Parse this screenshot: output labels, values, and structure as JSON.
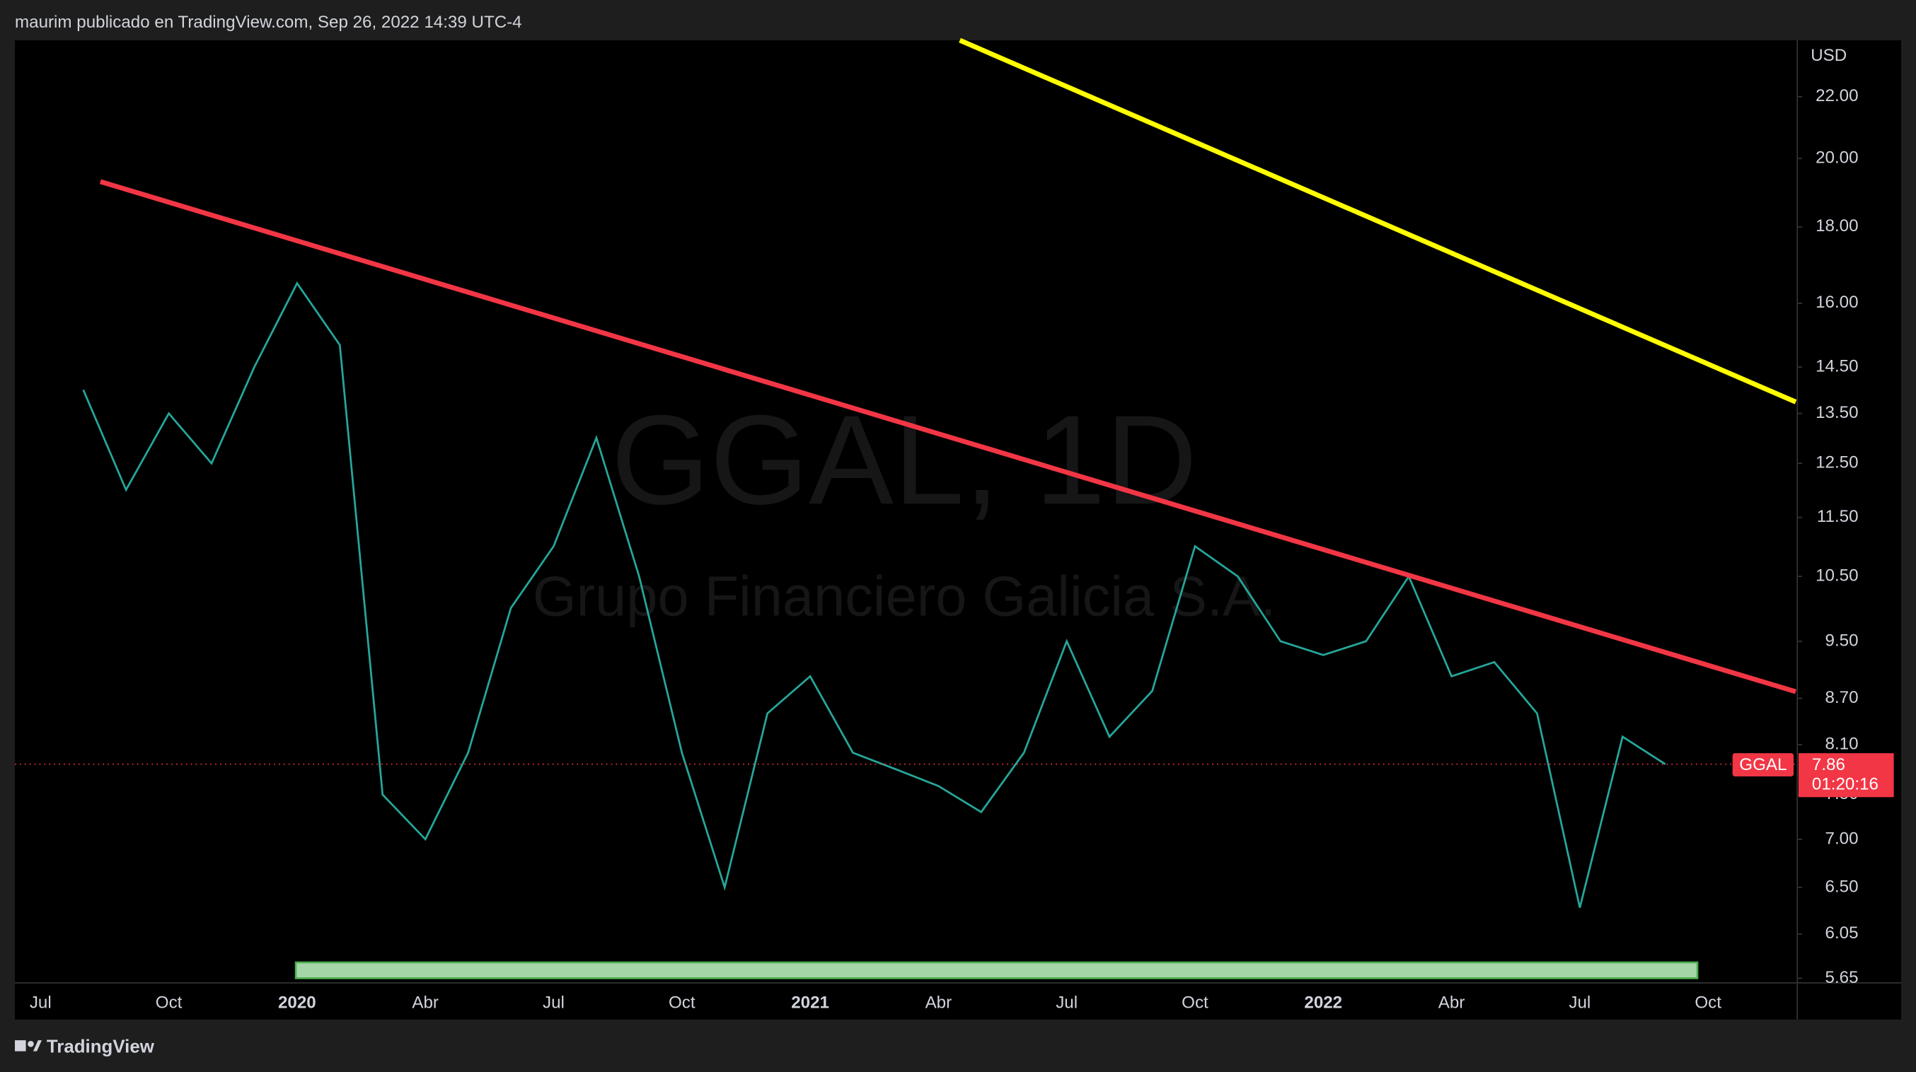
{
  "header": "maurim publicado en TradingView.com, Sep 26, 2022 14:39 UTC-4",
  "footer": "TradingView",
  "chart_data": {
    "type": "line",
    "watermark": "GGAL, 1D",
    "watermark_subtitle": "Grupo Financiero Galicia S.A.",
    "currency": "USD",
    "log_scale": true,
    "grid": false,
    "categories": [
      "Jul",
      null,
      null,
      "Oct",
      null,
      null,
      "2020",
      null,
      null,
      "Abr",
      null,
      null,
      "Jul",
      null,
      null,
      "Oct",
      null,
      null,
      "2021",
      null,
      null,
      "Abr",
      null,
      null,
      "Jul",
      null,
      null,
      "Oct",
      null,
      null,
      "2022",
      null,
      null,
      "Abr",
      null,
      null,
      "Jul",
      null,
      null,
      "Oct"
    ],
    "series": [
      {
        "name": "GGAL",
        "color": "#26a69a",
        "values": [
          null,
          14,
          12,
          13.5,
          12.5,
          14.5,
          16.5,
          15,
          7.5,
          7,
          8,
          10,
          11,
          13,
          10.5,
          8,
          6.5,
          8.5,
          9,
          8,
          7.8,
          7.6,
          7.3,
          8,
          9.5,
          8.2,
          8.8,
          11,
          10.5,
          9.5,
          9.3,
          9.5,
          10.5,
          9,
          9.2,
          8.5,
          6.3,
          8.2,
          7.86,
          null
        ]
      }
    ],
    "ylim": [
      5.61,
      24.0
    ],
    "yticks": [
      {
        "value": 5.65,
        "label": "5.65"
      },
      {
        "value": 6.05,
        "label": "6.05"
      },
      {
        "value": 6.5,
        "label": "6.50"
      },
      {
        "value": 7,
        "label": "7.00"
      },
      {
        "value": 7.5,
        "label": "7.50"
      },
      {
        "value": 8.1,
        "label": "8.10"
      },
      {
        "value": 8.7,
        "label": "8.70"
      },
      {
        "value": 9.5,
        "label": "9.50"
      },
      {
        "value": 10.5,
        "label": "10.50"
      },
      {
        "value": 11.5,
        "label": "11.50"
      },
      {
        "value": 12.5,
        "label": "12.50"
      },
      {
        "value": 13.5,
        "label": "13.50"
      },
      {
        "value": 14.5,
        "label": "14.50"
      },
      {
        "value": 16,
        "label": "16.00"
      },
      {
        "value": 18,
        "label": "18.00"
      },
      {
        "value": 20,
        "label": "20.00"
      },
      {
        "value": 22,
        "label": "22.00"
      }
    ],
    "trendlines": [
      {
        "color": "#f23645",
        "points": [
          [
            1.4,
            19.3
          ],
          [
            41.05,
            8.79
          ]
        ]
      },
      {
        "color": "#ffff00",
        "points": [
          [
            21.5,
            24.0
          ],
          [
            41.05,
            13.74
          ]
        ]
      }
    ],
    "zone": {
      "color": "#a5d6a7",
      "x": [
        5.97,
        38.75
      ],
      "y": [
        5.65,
        5.79
      ]
    },
    "last_price": {
      "value": 7.86,
      "label": "7.86",
      "symbol": "GGAL",
      "countdown": "01:20:16",
      "color": "#f23645"
    }
  }
}
